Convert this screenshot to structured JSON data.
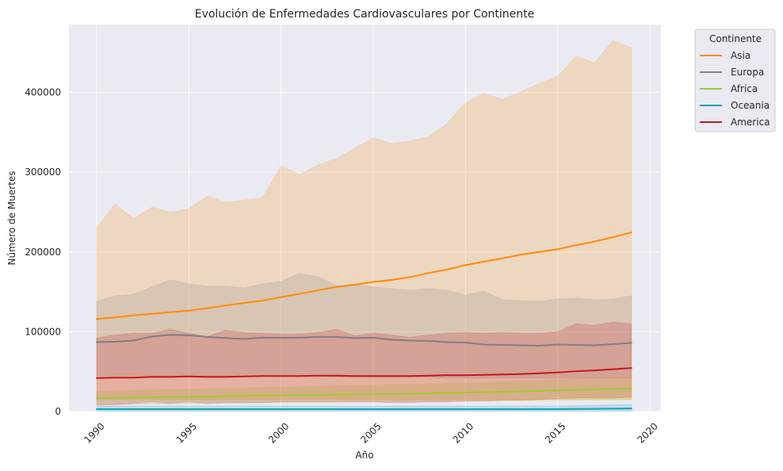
{
  "chart_data": {
    "type": "line",
    "title": "Evolución de Enfermedades Cardiovasculares por Continente",
    "xlabel": "Año",
    "ylabel": "Número de Muertes",
    "xlim": [
      1988.5,
      2020.6
    ],
    "ylim": [
      0,
      485000
    ],
    "x_ticks": [
      1990,
      1995,
      2000,
      2005,
      2010,
      2015,
      2020
    ],
    "y_ticks": [
      0,
      100000,
      200000,
      300000,
      400000
    ],
    "grid": true,
    "legend": {
      "title": "Continente",
      "placement": "outside-top-right"
    },
    "x": [
      1990,
      1991,
      1992,
      1993,
      1994,
      1995,
      1996,
      1997,
      1998,
      1999,
      2000,
      2001,
      2002,
      2003,
      2004,
      2005,
      2006,
      2007,
      2008,
      2009,
      2010,
      2011,
      2012,
      2013,
      2014,
      2015,
      2016,
      2017,
      2018,
      2019
    ],
    "series": [
      {
        "name": "Asia",
        "color": "#ff8c00",
        "values": [
          116000,
          118000,
          120500,
          122500,
          124500,
          126500,
          129500,
          133000,
          136000,
          139000,
          143500,
          147500,
          152000,
          156000,
          159000,
          162500,
          165000,
          168500,
          173500,
          178000,
          183500,
          188000,
          192000,
          196500,
          200000,
          203500,
          208500,
          213000,
          218500,
          224500
        ],
        "upper": [
          230000,
          260000,
          242000,
          256000,
          250000,
          254000,
          270000,
          262000,
          265000,
          268000,
          308000,
          297000,
          309000,
          317000,
          330000,
          343000,
          336000,
          339000,
          344000,
          361000,
          387000,
          399000,
          391000,
          401000,
          411000,
          420000,
          445000,
          437000,
          465000,
          456000
        ],
        "lower": [
          15000,
          15000,
          15000,
          15000,
          15000,
          15000,
          15000,
          15000,
          15000,
          15000,
          15000,
          15000,
          15000,
          15000,
          15000,
          15000,
          15000,
          15000,
          15000,
          15000,
          15000,
          15000,
          15000,
          15000,
          15000,
          15000,
          15000,
          15000,
          15000,
          15000
        ]
      },
      {
        "name": "Europa",
        "color": "#808080",
        "values": [
          87000,
          87500,
          89000,
          94000,
          96000,
          95500,
          93500,
          92000,
          91000,
          92500,
          92500,
          92500,
          93500,
          93500,
          92000,
          92500,
          90000,
          89000,
          88500,
          87000,
          86500,
          84000,
          83500,
          83000,
          82500,
          84000,
          83500,
          83000,
          84500,
          86000
        ],
        "upper": [
          138000,
          145000,
          147000,
          156000,
          165000,
          160000,
          157000,
          157000,
          155000,
          160000,
          163000,
          173000,
          169000,
          158000,
          159000,
          156000,
          154000,
          152000,
          154000,
          152000,
          146000,
          151000,
          140000,
          139000,
          138000,
          141000,
          142000,
          140000,
          141000,
          145000
        ],
        "lower": [
          45000,
          45000,
          45000,
          45000,
          45000,
          45000,
          45000,
          45000,
          45000,
          44000,
          44000,
          44000,
          44000,
          43000,
          43000,
          43000,
          43000,
          43000,
          43000,
          42000,
          42000,
          42000,
          42000,
          42000,
          42000,
          42000,
          42000,
          42000,
          42000,
          42000
        ]
      },
      {
        "name": "Africa",
        "color": "#9acd32",
        "values": [
          17000,
          17300,
          17600,
          17900,
          18200,
          18500,
          18800,
          19200,
          19600,
          20000,
          20300,
          20600,
          20900,
          21200,
          21500,
          21800,
          22100,
          22400,
          22800,
          23300,
          23800,
          24300,
          24800,
          25300,
          25900,
          26500,
          27100,
          27700,
          28300,
          29000
        ],
        "upper": [
          25000,
          26000,
          26500,
          27000,
          27500,
          28000,
          28500,
          29000,
          29500,
          30000,
          30500,
          31000,
          31500,
          32000,
          32500,
          33000,
          33500,
          34000,
          34500,
          35000,
          35500,
          36000,
          37000,
          38000,
          39000,
          40000,
          41000,
          42000,
          43000,
          44000
        ],
        "lower": [
          9000,
          9200,
          9400,
          9600,
          9800,
          10000,
          10200,
          10400,
          10600,
          10800,
          11000,
          11200,
          11400,
          11600,
          11800,
          12000,
          12200,
          12400,
          12600,
          12800,
          13000,
          13200,
          13400,
          13600,
          13800,
          14000,
          14200,
          14400,
          14600,
          14800
        ]
      },
      {
        "name": "Oceania",
        "color": "#17a2b8",
        "values": [
          3000,
          3000,
          3000,
          3000,
          3000,
          3000,
          3000,
          3000,
          3000,
          3000,
          3000,
          3000,
          3000,
          3000,
          3000,
          3000,
          3000,
          3000,
          3000,
          3000,
          3000,
          3000,
          3000,
          3000,
          3000,
          3000,
          3200,
          3400,
          3600,
          3800
        ],
        "upper": [
          7000,
          7000,
          7000,
          7000,
          7000,
          7000,
          7000,
          7000,
          7000,
          7000,
          7000,
          7000,
          7000,
          7000,
          7000,
          7000,
          7000,
          7000,
          7000,
          7000,
          7000,
          7000,
          7000,
          7000,
          7000,
          7000,
          7500,
          8000,
          8500,
          9000
        ],
        "lower": [
          0,
          0,
          0,
          0,
          0,
          0,
          0,
          0,
          0,
          0,
          0,
          0,
          0,
          0,
          0,
          0,
          0,
          0,
          0,
          0,
          0,
          0,
          0,
          0,
          0,
          0,
          0,
          0,
          0,
          0
        ]
      },
      {
        "name": "America",
        "color": "#c8161d",
        "values": [
          42000,
          42500,
          42500,
          43500,
          43500,
          44000,
          43500,
          43500,
          44000,
          44500,
          44500,
          44500,
          45000,
          45000,
          44500,
          44500,
          44500,
          44500,
          45000,
          45500,
          45500,
          46000,
          46500,
          47000,
          48000,
          49000,
          50500,
          51500,
          53000,
          54500
        ],
        "upper": [
          92000,
          96000,
          98000,
          98000,
          103000,
          98000,
          94000,
          102000,
          99000,
          98000,
          97000,
          97000,
          99000,
          103000,
          95000,
          98000,
          96000,
          93000,
          96000,
          98000,
          99000,
          98000,
          99000,
          98000,
          98000,
          100000,
          110000,
          108000,
          112000,
          110000
        ],
        "lower": [
          8000,
          8500,
          10000,
          12000,
          10000,
          12000,
          10000,
          11000,
          11000,
          11000,
          12000,
          12000,
          12000,
          12000,
          12000,
          12000,
          11000,
          11000,
          12000,
          12000,
          13000,
          13000,
          14000,
          14000,
          15000,
          16000,
          17000,
          17000,
          17000,
          18000
        ]
      }
    ]
  }
}
